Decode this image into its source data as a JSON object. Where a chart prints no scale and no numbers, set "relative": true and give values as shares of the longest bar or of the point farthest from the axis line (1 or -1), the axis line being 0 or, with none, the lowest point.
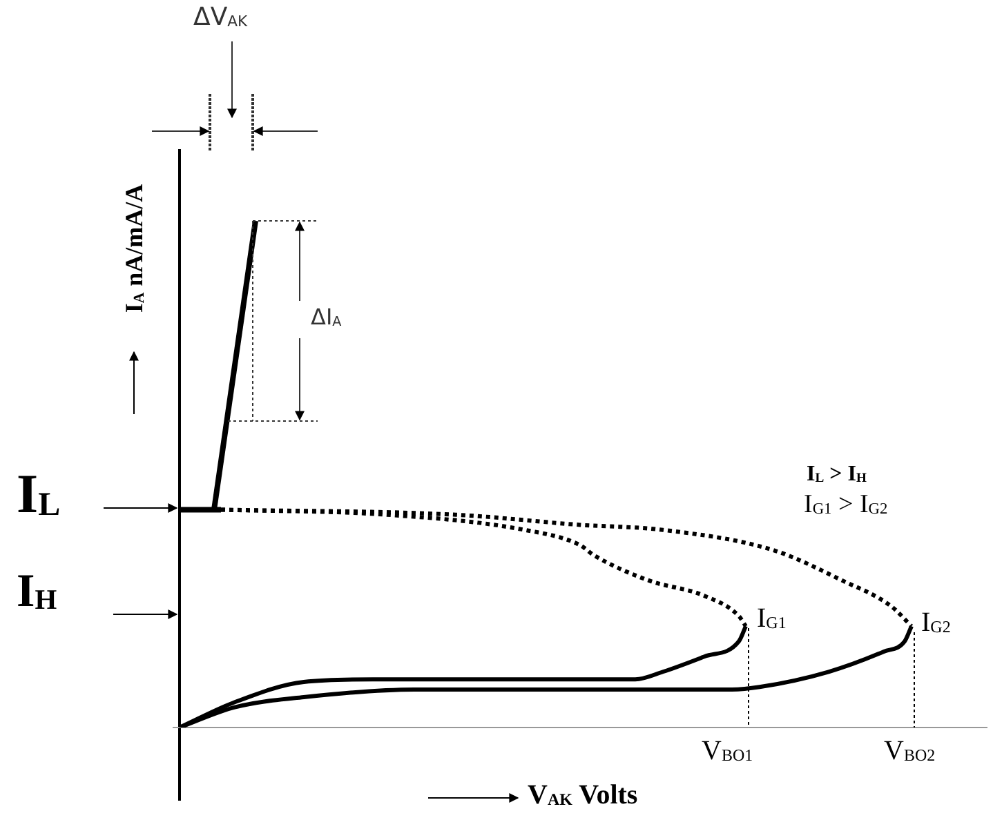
{
  "chart_data": {
    "type": "line",
    "relative": true,
    "marker": "none",
    "xlabel": "V$_{AK}$ Volts",
    "ylabel": "I$_{A}$ nA/mA/A",
    "categories": [
      null,
      null,
      null,
      null,
      null,
      null,
      null,
      null,
      null,
      null,
      null,
      null,
      null,
      null,
      null,
      null,
      null,
      null,
      null,
      null,
      null,
      null,
      null,
      null,
      null,
      null,
      null,
      null,
      null,
      null,
      null,
      null,
      null,
      null,
      null,
      null,
      null,
      null,
      null,
      null,
      null,
      null,
      null,
      null,
      null,
      null,
      null,
      null,
      null,
      null,
      null,
      null,
      null,
      null,
      null,
      null,
      null,
      null,
      null,
      null,
      null,
      null,
      null,
      null,
      null,
      null,
      null,
      null,
      null,
      null,
      null,
      null,
      null,
      null,
      null,
      null,
      null,
      null,
      null,
      null,
      null,
      null,
      null,
      null,
      null,
      null,
      null,
      null,
      null,
      null,
      null,
      null,
      null,
      null,
      null,
      null,
      null,
      null,
      null,
      null,
      null,
      null,
      null,
      null,
      null,
      null,
      null,
      null,
      null,
      null,
      null,
      null,
      null,
      null,
      null,
      null,
      null,
      null
    ],
    "series": [
      {
        "color": "#000000",
        "line_style": "solid",
        "values": [
          null,
          null,
          null,
          null,
          null,
          0.43,
          null,
          null,
          null,
          null,
          null,
          1,
          null,
          null,
          null,
          null,
          null,
          null,
          null,
          null,
          null,
          null,
          null,
          null,
          null,
          null,
          null,
          null,
          null,
          null,
          null,
          null,
          null,
          null,
          null,
          null,
          null,
          null,
          null,
          null,
          null,
          null,
          null,
          null,
          null,
          null,
          null,
          null,
          null,
          null,
          null,
          null,
          null,
          null,
          null,
          null,
          null,
          null,
          null,
          null,
          null,
          null,
          null,
          null,
          null,
          null,
          null,
          null,
          null,
          null,
          null,
          null,
          null,
          null,
          null,
          null,
          null,
          null,
          null,
          null,
          null,
          null,
          null,
          null,
          null,
          null,
          null,
          null,
          null,
          null,
          null,
          null,
          null,
          null,
          null,
          null,
          null,
          null,
          null,
          null,
          null,
          null,
          null,
          null,
          null,
          null,
          null,
          null,
          null,
          null,
          null,
          null,
          null,
          null,
          null,
          null,
          null,
          null
        ]
      },
      {
        "color": "#000000",
        "line_style": "solid",
        "values": [
          0.43,
          null,
          null,
          null,
          null,
          null,
          0.43,
          null,
          null,
          null,
          null,
          null,
          null,
          null,
          null,
          null,
          null,
          null,
          null,
          null,
          null,
          null,
          null,
          null,
          null,
          null,
          null,
          null,
          null,
          null,
          null,
          null,
          null,
          null,
          null,
          null,
          null,
          null,
          null,
          null,
          null,
          null,
          null,
          null,
          null,
          null,
          null,
          null,
          null,
          null,
          null,
          null,
          null,
          null,
          null,
          null,
          null,
          null,
          null,
          null,
          null,
          null,
          null,
          null,
          null,
          null,
          null,
          null,
          null,
          null,
          null,
          null,
          null,
          null,
          null,
          null,
          null,
          null,
          null,
          null,
          null,
          null,
          null,
          null,
          null,
          null,
          null,
          null,
          null,
          null,
          null,
          null,
          null,
          null,
          null,
          null,
          null,
          null,
          null,
          null,
          null,
          null,
          null,
          null,
          null,
          null,
          null,
          null,
          null,
          null,
          null,
          null,
          null,
          null,
          null,
          null,
          null,
          null
        ]
      },
      {
        "color": "#000000",
        "line_style": "solid",
        "values": [
          0,
          null,
          null,
          null,
          null,
          null,
          null,
          null,
          0.05,
          null,
          null,
          null,
          null,
          null,
          null,
          null,
          null,
          null,
          0.09,
          null,
          null,
          null,
          null,
          null,
          null,
          null,
          null,
          null,
          0.095,
          null,
          null,
          null,
          null,
          null,
          null,
          null,
          null,
          null,
          null,
          null,
          null,
          null,
          null,
          null,
          null,
          null,
          null,
          null,
          null,
          null,
          null,
          null,
          null,
          null,
          null,
          null,
          null,
          null,
          null,
          null,
          null,
          null,
          null,
          null,
          null,
          null,
          0.095,
          null,
          null,
          null,
          0.11,
          null,
          null,
          null,
          null,
          null,
          0.14,
          null,
          null,
          null,
          null,
          0.17,
          0.2,
          null,
          null,
          null,
          null,
          null,
          null,
          null,
          null,
          null,
          null,
          null,
          null,
          null,
          null,
          null,
          null,
          null,
          null,
          null,
          null,
          null,
          null,
          null,
          null,
          null,
          null,
          null,
          null,
          null,
          null,
          null,
          null,
          null,
          null,
          null
        ]
      },
      {
        "color": "#000000",
        "line_style": "solid",
        "values": [
          0,
          null,
          null,
          null,
          null,
          null,
          null,
          null,
          0.04,
          null,
          null,
          null,
          null,
          null,
          null,
          null,
          null,
          null,
          0.06,
          null,
          null,
          null,
          null,
          null,
          null,
          null,
          null,
          null,
          null,
          null,
          null,
          null,
          null,
          null,
          0.075,
          null,
          null,
          null,
          null,
          null,
          null,
          null,
          null,
          null,
          null,
          null,
          null,
          null,
          null,
          null,
          null,
          null,
          null,
          null,
          null,
          null,
          null,
          null,
          null,
          null,
          null,
          null,
          null,
          null,
          null,
          null,
          null,
          null,
          null,
          null,
          null,
          null,
          null,
          null,
          null,
          null,
          null,
          null,
          null,
          null,
          0.075,
          null,
          null,
          null,
          0.08,
          null,
          null,
          null,
          null,
          null,
          null,
          null,
          null,
          null,
          0.11,
          null,
          null,
          null,
          null,
          null,
          null,
          null,
          0.15,
          null,
          null,
          0.17,
          0.2,
          null,
          null,
          null,
          null,
          null,
          null,
          null,
          null,
          null,
          null,
          null
        ]
      },
      {
        "color": "#000000",
        "line_style": "dotted",
        "values": [
          null,
          null,
          null,
          null,
          null,
          null,
          0.43,
          null,
          null,
          null,
          null,
          null,
          null,
          null,
          null,
          null,
          null,
          null,
          null,
          null,
          null,
          null,
          null,
          null,
          null,
          null,
          null,
          null,
          null,
          null,
          0.42,
          null,
          null,
          null,
          null,
          null,
          null,
          null,
          null,
          null,
          null,
          null,
          null,
          null,
          null,
          null,
          null,
          null,
          null,
          null,
          0.39,
          null,
          null,
          null,
          null,
          null,
          null,
          null,
          0.36,
          null,
          0.34,
          null,
          null,
          null,
          null,
          null,
          null,
          null,
          0.29,
          null,
          null,
          null,
          null,
          null,
          null,
          null,
          0.26,
          null,
          null,
          null,
          null,
          0.22,
          0.2,
          null,
          null,
          null,
          null,
          null,
          null,
          null,
          null,
          null,
          null,
          null,
          null,
          null,
          null,
          null,
          null,
          null,
          null,
          null,
          null,
          null,
          null,
          null,
          null,
          null,
          null,
          null,
          null,
          null,
          null,
          null,
          null,
          null,
          null,
          null
        ]
      },
      {
        "color": "#000000",
        "line_style": "dotted",
        "values": [
          null,
          null,
          null,
          null,
          null,
          null,
          0.43,
          null,
          null,
          null,
          null,
          null,
          null,
          null,
          null,
          null,
          null,
          null,
          null,
          null,
          null,
          null,
          null,
          null,
          null,
          null,
          null,
          null,
          null,
          null,
          null,
          null,
          null,
          null,
          null,
          null,
          null,
          null,
          null,
          null,
          0.42,
          null,
          null,
          null,
          null,
          null,
          null,
          null,
          null,
          null,
          null,
          null,
          null,
          null,
          null,
          null,
          null,
          null,
          0.4,
          null,
          null,
          null,
          null,
          null,
          null,
          null,
          null,
          null,
          null,
          null,
          0.39,
          null,
          null,
          null,
          null,
          null,
          null,
          null,
          null,
          null,
          null,
          null,
          null,
          null,
          null,
          null,
          0.35,
          null,
          null,
          null,
          null,
          null,
          null,
          null,
          null,
          null,
          0.29,
          null,
          null,
          null,
          null,
          null,
          null,
          0.24,
          null,
          null,
          0.2,
          null,
          null,
          null,
          null,
          null,
          null,
          null,
          null,
          null,
          null,
          null
        ]
      }
    ],
    "annotations": [
      "ΔV$_{AK}$",
      "ΔI$_{A}$",
      "I$_{L}$",
      "I$_{H}$",
      "I$_{L}$ > I$_{H}$",
      "I$_{G1}$ > I$_{G2}$",
      "I$_{G1}$",
      "I$_{G2}$",
      "V$_{BO1}$",
      "V$_{BO2}$"
    ]
  }
}
